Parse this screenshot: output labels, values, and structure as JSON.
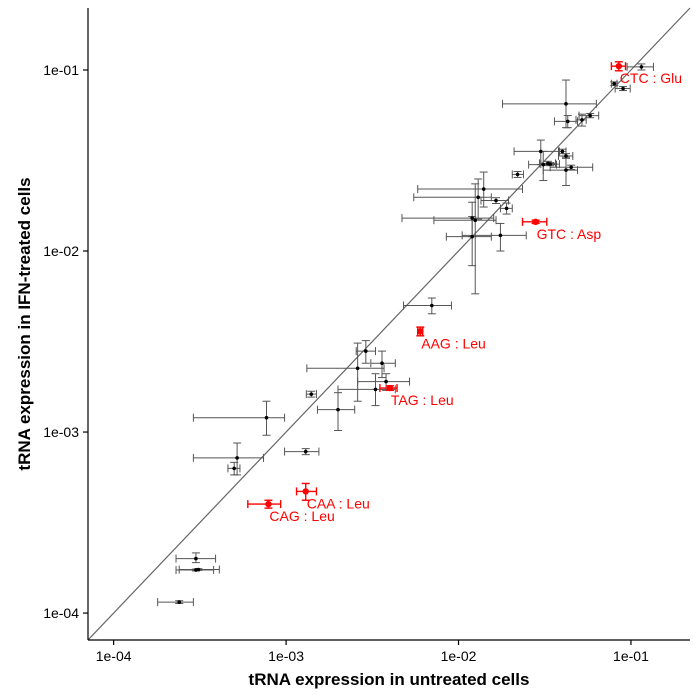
{
  "chart_data": {
    "type": "scatter",
    "xlabel": "tRNA expression in untreated cells",
    "ylabel": "tRNA expression in IFN-treated cells",
    "xscale": "log",
    "yscale": "log",
    "xlim": [
      7.1e-05,
      0.22
    ],
    "ylim": [
      7.1e-05,
      0.22
    ],
    "xticks": [
      {
        "value": 0.0001,
        "label": "1e-04"
      },
      {
        "value": 0.001,
        "label": "1e-03"
      },
      {
        "value": 0.01,
        "label": "1e-02"
      },
      {
        "value": 0.1,
        "label": "1e-01"
      }
    ],
    "yticks": [
      {
        "value": 0.0001,
        "label": "1e-04"
      },
      {
        "value": 0.001,
        "label": "1e-03"
      },
      {
        "value": 0.01,
        "label": "1e-02"
      },
      {
        "value": 0.1,
        "label": "1e-01"
      }
    ],
    "grid": false,
    "reference_line": "y = x",
    "colors": {
      "normal": "#000000",
      "highlight": "#ff0000",
      "errorbar": "#555555",
      "line": "#666666"
    },
    "points": [
      {
        "x": 0.00024,
        "y": 0.000115,
        "xerr": [
          0.00018,
          0.00029
        ],
        "yerr": [
          0.000113,
          0.000117
        ]
      },
      {
        "x": 0.0003,
        "y": 0.000173,
        "xerr": [
          0.00023,
          0.00038
        ],
        "yerr": [
          0.000171,
          0.000175
        ]
      },
      {
        "x": 0.00031,
        "y": 0.000174,
        "xerr": [
          0.00024,
          0.00041
        ],
        "yerr": [
          0.000172,
          0.000176
        ]
      },
      {
        "x": 0.0003,
        "y": 0.0002,
        "xerr": [
          0.00023,
          0.00039
        ],
        "yerr": [
          0.00019,
          0.000215
        ]
      },
      {
        "x": 0.0005,
        "y": 0.00063,
        "xerr": [
          0.00046,
          0.00054
        ],
        "yerr": [
          0.00058,
          0.00068
        ]
      },
      {
        "x": 0.00052,
        "y": 0.00072,
        "xerr": [
          0.00029,
          0.00074
        ],
        "yerr": [
          0.00058,
          0.00087
        ]
      },
      {
        "x": 0.00079,
        "y": 0.0004,
        "xerr": [
          0.0006,
          0.00093
        ],
        "yerr": [
          0.00038,
          0.00042
        ],
        "label": "CAG : Leu",
        "highlight": true
      },
      {
        "x": 0.0013,
        "y": 0.00047,
        "xerr": [
          0.00115,
          0.0015
        ],
        "yerr": [
          0.00042,
          0.00052
        ],
        "label": "CAA : Leu",
        "highlight": true
      },
      {
        "x": 0.0013,
        "y": 0.00078,
        "xerr": [
          0.00098,
          0.00155
        ],
        "yerr": [
          0.00075,
          0.00081
        ]
      },
      {
        "x": 0.00077,
        "y": 0.0012,
        "xerr": [
          0.00029,
          0.00098
        ],
        "yerr": [
          0.00096,
          0.00148
        ]
      },
      {
        "x": 0.0014,
        "y": 0.00162,
        "xerr": [
          0.00131,
          0.0015
        ],
        "yerr": [
          0.00156,
          0.00168
        ]
      },
      {
        "x": 0.002,
        "y": 0.00133,
        "xerr": [
          0.00152,
          0.0025
        ],
        "yerr": [
          0.00102,
          0.00165
        ]
      },
      {
        "x": 0.0026,
        "y": 0.00225,
        "xerr": [
          0.00132,
          0.0037
        ],
        "yerr": [
          0.00148,
          0.0031
        ]
      },
      {
        "x": 0.0029,
        "y": 0.0028,
        "xerr": [
          0.00255,
          0.0033
        ],
        "yerr": [
          0.0024,
          0.0032
        ]
      },
      {
        "x": 0.0033,
        "y": 0.00172,
        "xerr": [
          0.002,
          0.0043
        ],
        "yerr": [
          0.0014,
          0.0021
        ]
      },
      {
        "x": 0.0036,
        "y": 0.0024,
        "xerr": [
          0.0031,
          0.0043
        ],
        "yerr": [
          0.002,
          0.0028
        ]
      },
      {
        "x": 0.0038,
        "y": 0.0019,
        "xerr": [
          0.0026,
          0.0052
        ],
        "yerr": [
          0.0017,
          0.0021
        ]
      },
      {
        "x": 0.004,
        "y": 0.00175,
        "xerr": [
          0.0035,
          0.0044
        ],
        "yerr": [
          0.0017,
          0.0018
        ],
        "label": "TAG : Leu",
        "highlight": true
      },
      {
        "x": 0.006,
        "y": 0.0036,
        "xerr": [
          0.0058,
          0.0062
        ],
        "yerr": [
          0.0034,
          0.0038
        ],
        "label": "AAG : Leu",
        "highlight": true
      },
      {
        "x": 0.007,
        "y": 0.005,
        "xerr": [
          0.0048,
          0.0091
        ],
        "yerr": [
          0.0045,
          0.0055
        ]
      },
      {
        "x": 0.012,
        "y": 0.012,
        "xerr": [
          0.0085,
          0.0155
        ],
        "yerr": [
          0.0083,
          0.0155
        ]
      },
      {
        "x": 0.012,
        "y": 0.0152,
        "xerr": [
          0.0047,
          0.016
        ],
        "yerr": [
          0.012,
          0.0186
        ]
      },
      {
        "x": 0.0125,
        "y": 0.0148,
        "xerr": [
          0.0072,
          0.0165
        ],
        "yerr": [
          0.0058,
          0.0235
        ]
      },
      {
        "x": 0.013,
        "y": 0.0198,
        "xerr": [
          0.0055,
          0.0155
        ],
        "yerr": [
          0.015,
          0.025
        ]
      },
      {
        "x": 0.014,
        "y": 0.022,
        "xerr": [
          0.0058,
          0.0235
        ],
        "yerr": [
          0.0175,
          0.0273
        ]
      },
      {
        "x": 0.0175,
        "y": 0.0122,
        "xerr": [
          0.0105,
          0.0247
        ],
        "yerr": [
          0.01,
          0.0142
        ]
      },
      {
        "x": 0.0165,
        "y": 0.019,
        "xerr": [
          0.0135,
          0.0195
        ],
        "yerr": [
          0.0183,
          0.0197
        ]
      },
      {
        "x": 0.019,
        "y": 0.0172,
        "xerr": [
          0.0175,
          0.0205
        ],
        "yerr": [
          0.016,
          0.0184
        ]
      },
      {
        "x": 0.022,
        "y": 0.0265,
        "xerr": [
          0.0205,
          0.0238
        ],
        "yerr": [
          0.0255,
          0.0275
        ]
      },
      {
        "x": 0.028,
        "y": 0.0145,
        "xerr": [
          0.0235,
          0.0325
        ],
        "yerr": [
          0.0142,
          0.0148
        ],
        "label": "GTC : Asp",
        "highlight": true
      },
      {
        "x": 0.031,
        "y": 0.03,
        "xerr": [
          0.0255,
          0.037
        ],
        "yerr": [
          0.0245,
          0.0355
        ]
      },
      {
        "x": 0.033,
        "y": 0.0305,
        "xerr": [
          0.0295,
          0.0365
        ],
        "yerr": [
          0.0297,
          0.0313
        ]
      },
      {
        "x": 0.03,
        "y": 0.0355,
        "xerr": [
          0.021,
          0.0385
        ],
        "yerr": [
          0.03,
          0.041
        ]
      },
      {
        "x": 0.034,
        "y": 0.0302,
        "xerr": [
          0.03,
          0.0385
        ],
        "yerr": [
          0.0296,
          0.0308
        ]
      },
      {
        "x": 0.04,
        "y": 0.0355,
        "xerr": [
          0.038,
          0.042
        ],
        "yerr": [
          0.0345,
          0.0365
        ]
      },
      {
        "x": 0.042,
        "y": 0.0335,
        "xerr": [
          0.038,
          0.046
        ],
        "yerr": [
          0.0325,
          0.0345
        ]
      },
      {
        "x": 0.045,
        "y": 0.029,
        "xerr": [
          0.034,
          0.06
        ],
        "yerr": [
          0.0282,
          0.0298
        ]
      },
      {
        "x": 0.042,
        "y": 0.028,
        "xerr": [
          0.031,
          0.049
        ],
        "yerr": [
          0.023,
          0.033
        ]
      },
      {
        "x": 0.042,
        "y": 0.065,
        "xerr": [
          0.018,
          0.063
        ],
        "yerr": [
          0.048,
          0.088
        ]
      },
      {
        "x": 0.043,
        "y": 0.052,
        "xerr": [
          0.036,
          0.049
        ],
        "yerr": [
          0.048,
          0.056
        ]
      },
      {
        "x": 0.052,
        "y": 0.053,
        "xerr": [
          0.048,
          0.055
        ],
        "yerr": [
          0.049,
          0.057
        ]
      },
      {
        "x": 0.058,
        "y": 0.056,
        "xerr": [
          0.05,
          0.065
        ],
        "yerr": [
          0.0545,
          0.0575
        ]
      },
      {
        "x": 0.08,
        "y": 0.084,
        "xerr": [
          0.077,
          0.083
        ],
        "yerr": [
          0.082,
          0.086
        ]
      },
      {
        "x": 0.09,
        "y": 0.079,
        "xerr": [
          0.081,
          0.099
        ],
        "yerr": [
          0.077,
          0.081
        ]
      },
      {
        "x": 0.085,
        "y": 0.105,
        "xerr": [
          0.077,
          0.093
        ],
        "yerr": [
          0.099,
          0.111
        ],
        "label": "CTC : Glu",
        "highlight": true
      },
      {
        "x": 0.115,
        "y": 0.104,
        "xerr": [
          0.095,
          0.135
        ],
        "yerr": [
          0.1,
          0.108
        ]
      }
    ]
  }
}
